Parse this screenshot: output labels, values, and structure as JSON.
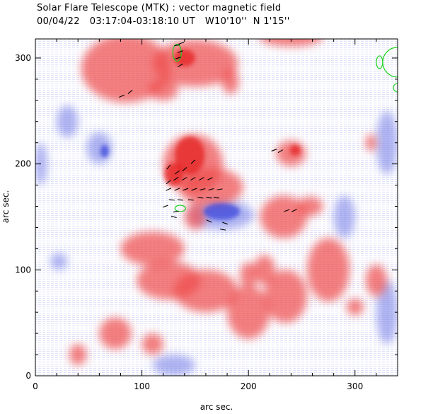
{
  "header": {
    "title": "Solar Flare Telescope (MTK) : vector magnetic field",
    "date": "00/04/22",
    "time_range": "03:17:04-03:18:10 UT",
    "position": "W10'10''  N 1'15''"
  },
  "axes": {
    "xlabel": "arc sec.",
    "ylabel": "arc sec.",
    "xlim": [
      0,
      340
    ],
    "ylim": [
      0,
      318
    ],
    "xticks": [
      0,
      100,
      200,
      300
    ],
    "yticks": [
      0,
      100,
      200,
      300
    ]
  },
  "colors": {
    "positive_polarity": "#ef4d4d",
    "negative_polarity": "#6f78e6",
    "vector": "#000000",
    "contour": "#1fd11f"
  },
  "regions": {
    "positive": [
      {
        "x": 85,
        "y": 290,
        "rx": 42,
        "ry": 32
      },
      {
        "x": 150,
        "y": 295,
        "rx": 40,
        "ry": 22
      },
      {
        "x": 183,
        "y": 278,
        "rx": 8,
        "ry": 12
      },
      {
        "x": 240,
        "y": 320,
        "rx": 30,
        "ry": 9
      },
      {
        "x": 258,
        "y": 160,
        "rx": 12,
        "ry": 9
      },
      {
        "x": 120,
        "y": 270,
        "rx": 14,
        "ry": 10
      },
      {
        "x": 148,
        "y": 200,
        "rx": 28,
        "ry": 28
      },
      {
        "x": 165,
        "y": 178,
        "rx": 30,
        "ry": 18
      },
      {
        "x": 150,
        "y": 150,
        "rx": 10,
        "ry": 12
      },
      {
        "x": 240,
        "y": 210,
        "rx": 14,
        "ry": 12
      },
      {
        "x": 233,
        "y": 150,
        "rx": 22,
        "ry": 20
      },
      {
        "x": 215,
        "y": 100,
        "rx": 10,
        "ry": 14
      },
      {
        "x": 200,
        "y": 95,
        "rx": 8,
        "ry": 12
      },
      {
        "x": 275,
        "y": 100,
        "rx": 20,
        "ry": 30
      },
      {
        "x": 160,
        "y": 80,
        "rx": 30,
        "ry": 20
      },
      {
        "x": 200,
        "y": 60,
        "rx": 20,
        "ry": 25
      },
      {
        "x": 235,
        "y": 75,
        "rx": 20,
        "ry": 25
      },
      {
        "x": 110,
        "y": 120,
        "rx": 30,
        "ry": 16
      },
      {
        "x": 125,
        "y": 90,
        "rx": 30,
        "ry": 18
      },
      {
        "x": 75,
        "y": 40,
        "rx": 15,
        "ry": 15
      },
      {
        "x": 110,
        "y": 30,
        "rx": 10,
        "ry": 10
      },
      {
        "x": 40,
        "y": 20,
        "rx": 8,
        "ry": 10
      },
      {
        "x": 320,
        "y": 90,
        "rx": 10,
        "ry": 15
      },
      {
        "x": 300,
        "y": 65,
        "rx": 8,
        "ry": 8
      },
      {
        "x": 315,
        "y": 220,
        "rx": 5,
        "ry": 8
      }
    ],
    "negative": [
      {
        "x": 175,
        "y": 152,
        "rx": 30,
        "ry": 14
      },
      {
        "x": 60,
        "y": 215,
        "rx": 12,
        "ry": 15
      },
      {
        "x": 30,
        "y": 240,
        "rx": 10,
        "ry": 15
      },
      {
        "x": 22,
        "y": 108,
        "rx": 8,
        "ry": 8
      },
      {
        "x": 5,
        "y": 200,
        "rx": 6,
        "ry": 20
      },
      {
        "x": 130,
        "y": 10,
        "rx": 20,
        "ry": 10
      },
      {
        "x": 290,
        "y": 150,
        "rx": 10,
        "ry": 20
      },
      {
        "x": 330,
        "y": 220,
        "rx": 10,
        "ry": 30
      },
      {
        "x": 330,
        "y": 60,
        "rx": 10,
        "ry": 30
      }
    ],
    "bright_positive": [
      {
        "x": 145,
        "y": 208,
        "rx": 14,
        "ry": 18
      },
      {
        "x": 130,
        "y": 190,
        "rx": 9,
        "ry": 11
      },
      {
        "x": 140,
        "y": 300,
        "rx": 10,
        "ry": 8
      },
      {
        "x": 244,
        "y": 213,
        "rx": 5,
        "ry": 5
      }
    ],
    "bright_negative": [
      {
        "x": 175,
        "y": 155,
        "rx": 17,
        "ry": 8
      },
      {
        "x": 65,
        "y": 212,
        "rx": 4,
        "ry": 6
      }
    ]
  },
  "vectors": [
    {
      "x": 125,
      "y": 183,
      "angle": -40
    },
    {
      "x": 132,
      "y": 186,
      "angle": -35
    },
    {
      "x": 140,
      "y": 186,
      "angle": -30
    },
    {
      "x": 148,
      "y": 186,
      "angle": -30
    },
    {
      "x": 156,
      "y": 186,
      "angle": -30
    },
    {
      "x": 164,
      "y": 186,
      "angle": -25
    },
    {
      "x": 125,
      "y": 176,
      "angle": -25
    },
    {
      "x": 133,
      "y": 176,
      "angle": -25
    },
    {
      "x": 141,
      "y": 176,
      "angle": -20
    },
    {
      "x": 149,
      "y": 176,
      "angle": -20
    },
    {
      "x": 157,
      "y": 176,
      "angle": -15
    },
    {
      "x": 165,
      "y": 176,
      "angle": -15
    },
    {
      "x": 173,
      "y": 176,
      "angle": -10
    },
    {
      "x": 133,
      "y": 192,
      "angle": -35
    },
    {
      "x": 140,
      "y": 195,
      "angle": -40
    },
    {
      "x": 125,
      "y": 197,
      "angle": -50
    },
    {
      "x": 148,
      "y": 202,
      "angle": -45
    },
    {
      "x": 122,
      "y": 160,
      "angle": -20
    },
    {
      "x": 128,
      "y": 166,
      "angle": 5
    },
    {
      "x": 136,
      "y": 166,
      "angle": 5
    },
    {
      "x": 146,
      "y": 166,
      "angle": 5
    },
    {
      "x": 155,
      "y": 168,
      "angle": 5
    },
    {
      "x": 163,
      "y": 168,
      "angle": 5
    },
    {
      "x": 170,
      "y": 168,
      "angle": 5
    },
    {
      "x": 163,
      "y": 146,
      "angle": 25
    },
    {
      "x": 178,
      "y": 144,
      "angle": 20
    },
    {
      "x": 176,
      "y": 138,
      "angle": 10
    },
    {
      "x": 130,
      "y": 150,
      "angle": 15
    },
    {
      "x": 132,
      "y": 155,
      "angle": -10
    },
    {
      "x": 224,
      "y": 213,
      "angle": -20
    },
    {
      "x": 230,
      "y": 212,
      "angle": -30
    },
    {
      "x": 236,
      "y": 156,
      "angle": -20
    },
    {
      "x": 243,
      "y": 156,
      "angle": -25
    },
    {
      "x": 81,
      "y": 264,
      "angle": -25
    },
    {
      "x": 89,
      "y": 268,
      "angle": -40
    },
    {
      "x": 134,
      "y": 300,
      "angle": -15
    },
    {
      "x": 136,
      "y": 306,
      "angle": -20
    },
    {
      "x": 133,
      "y": 312,
      "angle": -10
    },
    {
      "x": 137,
      "y": 314,
      "angle": -20
    },
    {
      "x": 136,
      "y": 293,
      "angle": -30
    }
  ],
  "contours": [
    {
      "x": 133,
      "y": 305,
      "rx": 4,
      "ry": 8
    },
    {
      "x": 136,
      "y": 158,
      "rx": 5,
      "ry": 3
    },
    {
      "x": 323,
      "y": 296,
      "rx": 3,
      "ry": 6
    }
  ],
  "contour_arcs": [
    {
      "x": 340,
      "y": 296,
      "r": 14
    },
    {
      "x": 340,
      "y": 272,
      "r": 4
    }
  ]
}
